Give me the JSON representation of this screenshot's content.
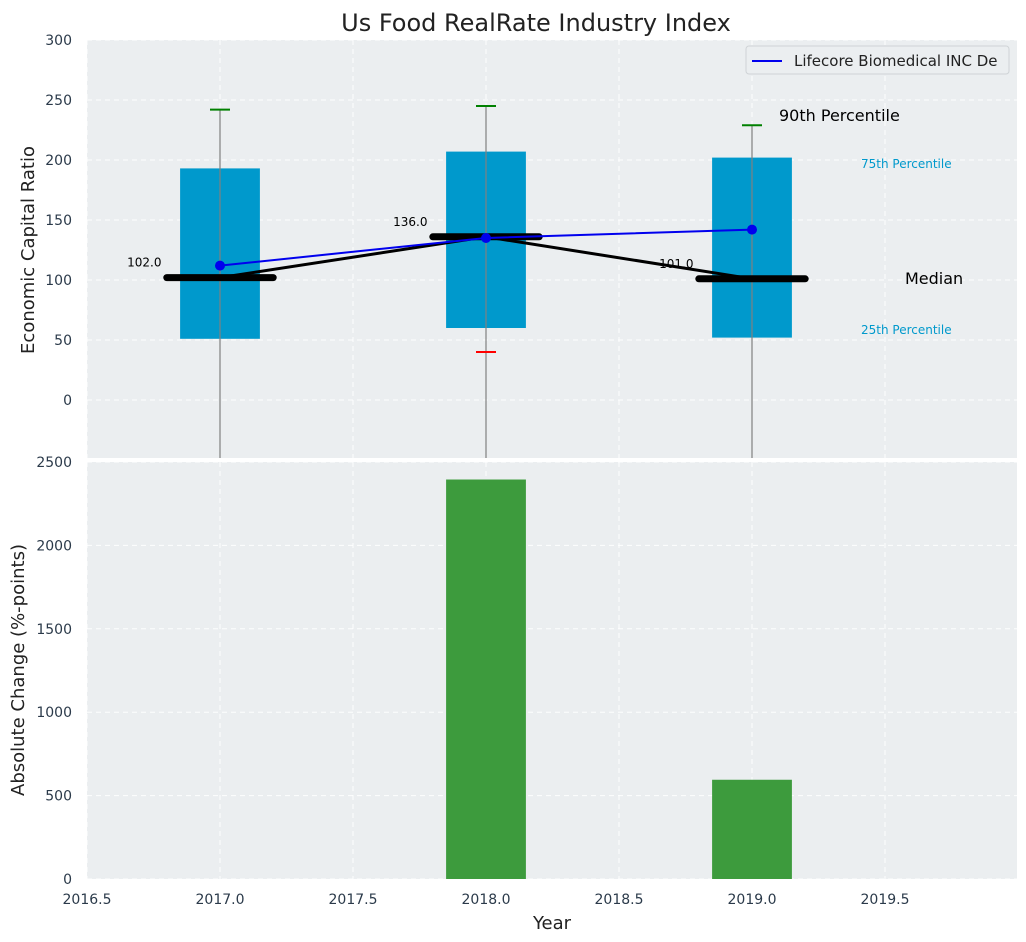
{
  "chart_data": [
    {
      "type": "box",
      "title": "Us Food RealRate Industry Index",
      "ylabel": "Economic Capital Ratio",
      "xlim": [
        2016.5,
        2020.0
      ],
      "ylim": [
        0,
        300
      ],
      "yticks": [
        0,
        50,
        100,
        150,
        200,
        250,
        300
      ],
      "grid": true,
      "legend": {
        "position": "top-right",
        "entries": [
          "Lifecore Biomedical INC De"
        ]
      },
      "boxes": [
        {
          "x": 2017.0,
          "q25": 51,
          "q75": 193,
          "median": 102.0,
          "p90": 242,
          "p10": null,
          "median_label": "102.0"
        },
        {
          "x": 2018.0,
          "q25": 60,
          "q75": 207,
          "median": 136.0,
          "p90": 245,
          "p10": 40,
          "median_label": "136.0"
        },
        {
          "x": 2019.0,
          "q25": 52,
          "q75": 202,
          "median": 101.0,
          "p90": 229,
          "p10": null,
          "median_label": "101.0"
        }
      ],
      "median_line": {
        "x": [
          2017.0,
          2018.0,
          2019.0
        ],
        "y": [
          102,
          136,
          101
        ]
      },
      "series": [
        {
          "name": "Lifecore Biomedical INC De",
          "x": [
            2017.0,
            2018.0,
            2019.0
          ],
          "y": [
            112,
            135,
            142
          ],
          "color": "#0000ee"
        }
      ],
      "annotations": [
        {
          "text": "90th Percentile",
          "color": "#000000"
        },
        {
          "text": "75th Percentile",
          "color": "#0099cc"
        },
        {
          "text": "Median",
          "color": "#000000"
        },
        {
          "text": "25th Percentile",
          "color": "#0099cc"
        }
      ]
    },
    {
      "type": "bar",
      "xlabel": "Year",
      "ylabel": "Absolute Change (%-points)",
      "xlim": [
        2016.5,
        2020.0
      ],
      "xticks": [
        2016.5,
        2017.0,
        2017.5,
        2018.0,
        2018.5,
        2019.0,
        2019.5
      ],
      "xtick_labels": [
        "2016.5",
        "2017.0",
        "2017.5",
        "2018.0",
        "2018.5",
        "2019.0",
        "2019.5"
      ],
      "ylim": [
        0,
        2500
      ],
      "yticks": [
        0,
        500,
        1000,
        1500,
        2000,
        2500
      ],
      "grid": true,
      "x": [
        2018.0,
        2019.0
      ],
      "values": [
        2395,
        595
      ],
      "color": "#3d9b3d"
    }
  ],
  "colors": {
    "panel_bg": "#ebeef0",
    "box_fill": "#0099cc",
    "whisker_top": "#008000",
    "whisker_bottom": "#ff0000",
    "text": "#2b3a4a"
  }
}
